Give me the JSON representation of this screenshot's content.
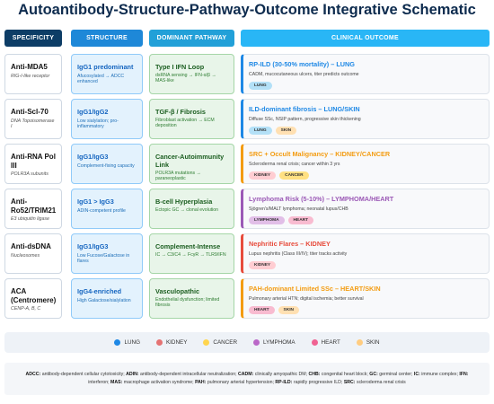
{
  "title": "Autoantibody-Structure-Pathway-Outcome Integrative Schematic",
  "headers": [
    "SPECIFICITY",
    "STRUCTURE",
    "DOMINANT PATHWAY",
    "CLINICAL OUTCOME"
  ],
  "rows": [
    {
      "specificity": {
        "name": "Anti-MDA5",
        "target": "RIG-I-like receptor"
      },
      "structure": {
        "name": "IgG1 predominant",
        "detail": "Afucosylated → ADCC enhanced"
      },
      "pathway": {
        "name": "Type I IFN Loop",
        "detail": "dsRNA sensing → IFN-α/β → MAS-like"
      },
      "outcome": {
        "name": "RP-ILD (30-50% mortality) – LUNG",
        "detail": "CADM, mucocutaneous ulcers, titer predicts outcome",
        "color": "#1e88e5",
        "tags": [
          "LUNG"
        ]
      }
    },
    {
      "specificity": {
        "name": "Anti-Scl-70",
        "target": "DNA Topoisomerase I"
      },
      "structure": {
        "name": "IgG1/IgG2",
        "detail": "Low sialylation; pro-inflammatory"
      },
      "pathway": {
        "name": "TGF-β / Fibrosis",
        "detail": "Fibroblast activation → ECM deposition"
      },
      "outcome": {
        "name": "ILD-dominant fibrosis – LUNG/SKIN",
        "detail": "Diffuse SSc, NSIP pattern, progressive skin thickening",
        "color": "#1e88e5",
        "tags": [
          "LUNG",
          "SKIN"
        ]
      }
    },
    {
      "specificity": {
        "name": "Anti-RNA Pol III",
        "target": "POLR3A subunits"
      },
      "structure": {
        "name": "IgG1/IgG3",
        "detail": "Complement-fixing capacity"
      },
      "pathway": {
        "name": "Cancer-Autoimmunity Link",
        "detail": "POLR3A mutations → paraneoplastic"
      },
      "outcome": {
        "name": "SRC + Occult Malignancy – KIDNEY/CANCER",
        "detail": "Scleroderma renal crisis; cancer within 3 yrs",
        "color": "#f39c12",
        "tags": [
          "KIDNEY",
          "CANCER"
        ]
      }
    },
    {
      "specificity": {
        "name": "Anti-Ro52/TRIM21",
        "target": "E3 ubiquitin ligase"
      },
      "structure": {
        "name": "IgG1 > IgG3",
        "detail": "ADIN-competent profile"
      },
      "pathway": {
        "name": "B-cell Hyperplasia",
        "detail": "Ectopic GC → clonal evolution"
      },
      "outcome": {
        "name": "Lymphoma Risk (5-10%) – LYMPHOMA/HEART",
        "detail": "Sjögren's/MALT lymphoma; neonatal lupus/CHB",
        "color": "#9b59b6",
        "tags": [
          "LYMPHOMA",
          "HEART"
        ]
      }
    },
    {
      "specificity": {
        "name": "Anti-dsDNA",
        "target": "Nucleosomes"
      },
      "structure": {
        "name": "IgG1/IgG3",
        "detail": "Low Fucose/Galactose in flares"
      },
      "pathway": {
        "name": "Complement-Intense",
        "detail": "IC → C3/C4 → FcγR → TLR9/IFN"
      },
      "outcome": {
        "name": "Nephritic Flares – KIDNEY",
        "detail": "Lupus nephritis (Class III/IV); titer tracks activity",
        "color": "#e74c3c",
        "tags": [
          "KIDNEY"
        ]
      }
    },
    {
      "specificity": {
        "name": "ACA (Centromere)",
        "target": "CENP-A, B, C"
      },
      "structure": {
        "name": "IgG4-enriched",
        "detail": "High Galactose/sialylation"
      },
      "pathway": {
        "name": "Vasculopathic",
        "detail": "Endothelial dysfunction; limited fibrosis"
      },
      "outcome": {
        "name": "PAH-dominant Limited SSc – HEART/SKIN",
        "detail": "Pulmonary arterial HTN; digital ischemia; better survival",
        "color": "#f39c12",
        "tags": [
          "HEART",
          "SKIN"
        ]
      }
    }
  ],
  "legend": [
    {
      "name": "LUNG",
      "color": "#1e88e5",
      "tint": "#b3e0f7"
    },
    {
      "name": "KIDNEY",
      "color": "#e57373",
      "tint": "#ffcdd2"
    },
    {
      "name": "CANCER",
      "color": "#ffd54f",
      "tint": "#ffe082"
    },
    {
      "name": "LYMPHOMA",
      "color": "#ba68c8",
      "tint": "#e1bee7"
    },
    {
      "name": "HEART",
      "color": "#f06292",
      "tint": "#f8bbd0"
    },
    {
      "name": "SKIN",
      "color": "#ffcc80",
      "tint": "#ffe0b2"
    }
  ],
  "abbreviations": [
    {
      "term": "ADCC:",
      "definition": "antibody-dependent cellular cytotoxicity;"
    },
    {
      "term": "ADIN:",
      "definition": "antibody-dependent intracellular neutralization;"
    },
    {
      "term": "CADM:",
      "definition": "clinically amyopathic DM;"
    },
    {
      "term": "CHB:",
      "definition": "congenital heart block;"
    },
    {
      "term": "GC:",
      "definition": "germinal center;"
    },
    {
      "term": "IC:",
      "definition": "immune complex;"
    },
    {
      "term": "IFN:",
      "definition": "interferon;"
    },
    {
      "term": "MAS:",
      "definition": "macrophage activation syndrome;"
    },
    {
      "term": "PAH:",
      "definition": "pulmonary arterial hypertension;"
    },
    {
      "term": "RP-ILD:",
      "definition": "rapidly progressive ILD;"
    },
    {
      "term": "SRC:",
      "definition": "scleroderma renal crisis"
    }
  ]
}
